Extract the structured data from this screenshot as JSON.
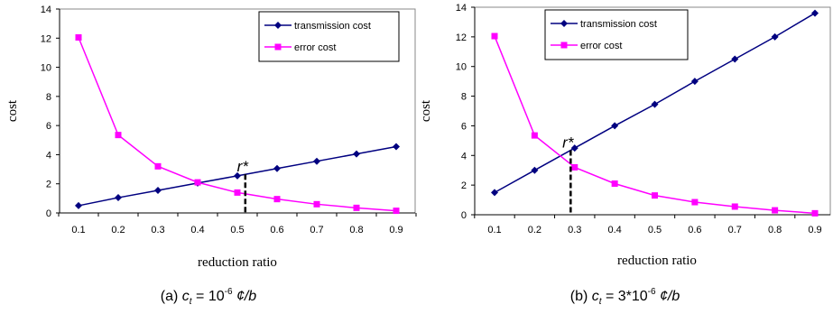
{
  "chart_data": [
    {
      "type": "line",
      "x": [
        0.1,
        0.2,
        0.3,
        0.4,
        0.5,
        0.6,
        0.7,
        0.8,
        0.9
      ],
      "series": [
        {
          "name": "transmission cost",
          "values": [
            0.5,
            1.05,
            1.55,
            2.05,
            2.55,
            3.05,
            3.55,
            4.05,
            4.55
          ],
          "color": "#000080",
          "marker": "diamond"
        },
        {
          "name": "error cost",
          "values": [
            12.05,
            5.35,
            3.2,
            2.1,
            1.4,
            0.95,
            0.6,
            0.35,
            0.15
          ],
          "color": "#ff00ff",
          "marker": "square"
        }
      ],
      "xlabel": "reduction ratio",
      "ylabel": "cost",
      "ylim": [
        0,
        14
      ],
      "yticks": [
        "0",
        "2",
        "4",
        "6",
        "8",
        "10",
        "12",
        "14"
      ],
      "xticks": [
        "0.1",
        "0.2",
        "0.3",
        "0.4",
        "0.5",
        "0.6",
        "0.7",
        "0.8",
        "0.9"
      ],
      "grid": false,
      "legend": "top-right",
      "annotation": {
        "label": "r*",
        "x": 0.52
      },
      "caption": {
        "prefix": "(a) ",
        "var": "c",
        "sub": "t",
        "mid": " = 10",
        "sup": "-6",
        "suffix": " ¢/b"
      }
    },
    {
      "type": "line",
      "x": [
        0.1,
        0.2,
        0.3,
        0.4,
        0.5,
        0.6,
        0.7,
        0.8,
        0.9
      ],
      "series": [
        {
          "name": "transmission cost",
          "values": [
            1.5,
            3.0,
            4.5,
            6.0,
            7.45,
            9.0,
            10.5,
            12.0,
            13.6
          ],
          "color": "#000080",
          "marker": "diamond"
        },
        {
          "name": "error cost",
          "values": [
            12.05,
            5.35,
            3.2,
            2.1,
            1.3,
            0.85,
            0.55,
            0.3,
            0.1
          ],
          "color": "#ff00ff",
          "marker": "square"
        }
      ],
      "xlabel": "reduction ratio",
      "ylabel": "cost",
      "ylim": [
        0,
        14
      ],
      "yticks": [
        "0",
        "2",
        "4",
        "6",
        "8",
        "10",
        "12",
        "14"
      ],
      "xticks": [
        "0.1",
        "0.2",
        "0.3",
        "0.4",
        "0.5",
        "0.6",
        "0.7",
        "0.8",
        "0.9"
      ],
      "grid": false,
      "legend": "top-left",
      "annotation": {
        "label": "r*",
        "x": 0.29
      },
      "caption": {
        "prefix": "(b) ",
        "var": "c",
        "sub": "t",
        "mid": " = 3*10",
        "sup": "-6",
        "suffix": " ¢/b"
      }
    }
  ]
}
